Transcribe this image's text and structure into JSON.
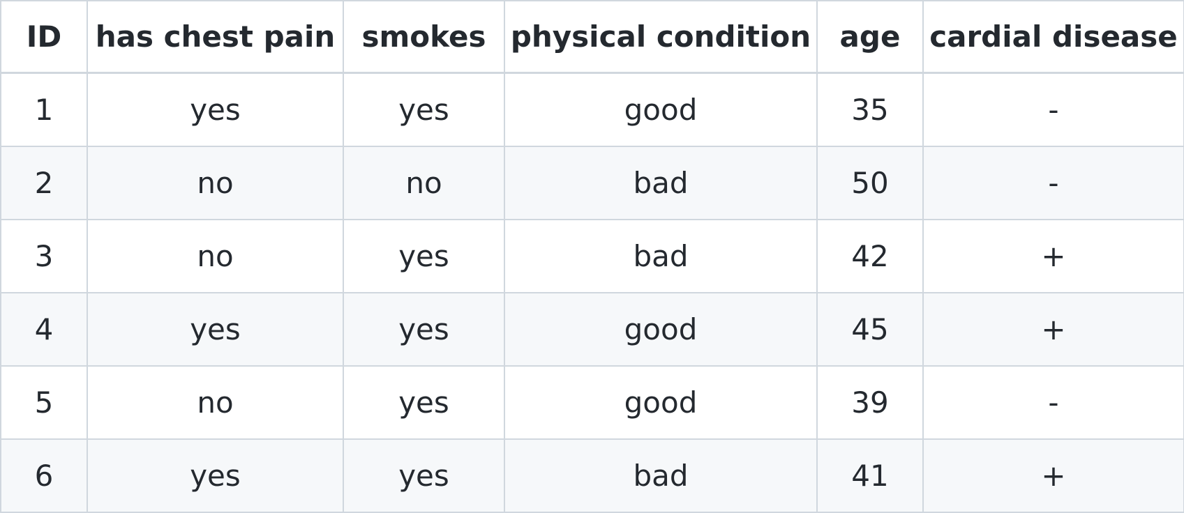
{
  "table": {
    "headers": [
      "ID",
      "has chest pain",
      "smokes",
      "physical condition",
      "age",
      "cardial disease"
    ],
    "rows": [
      [
        "1",
        "yes",
        "yes",
        "good",
        "35",
        "-"
      ],
      [
        "2",
        "no",
        "no",
        "bad",
        "50",
        "-"
      ],
      [
        "3",
        "no",
        "yes",
        "bad",
        "42",
        "+"
      ],
      [
        "4",
        "yes",
        "yes",
        "good",
        "45",
        "+"
      ],
      [
        "5",
        "no",
        "yes",
        "good",
        "39",
        "-"
      ],
      [
        "6",
        "yes",
        "yes",
        "bad",
        "41",
        "+"
      ]
    ]
  },
  "colors": {
    "border": "#d0d7de",
    "stripe": "#f6f8fa",
    "text": "#24292f"
  }
}
